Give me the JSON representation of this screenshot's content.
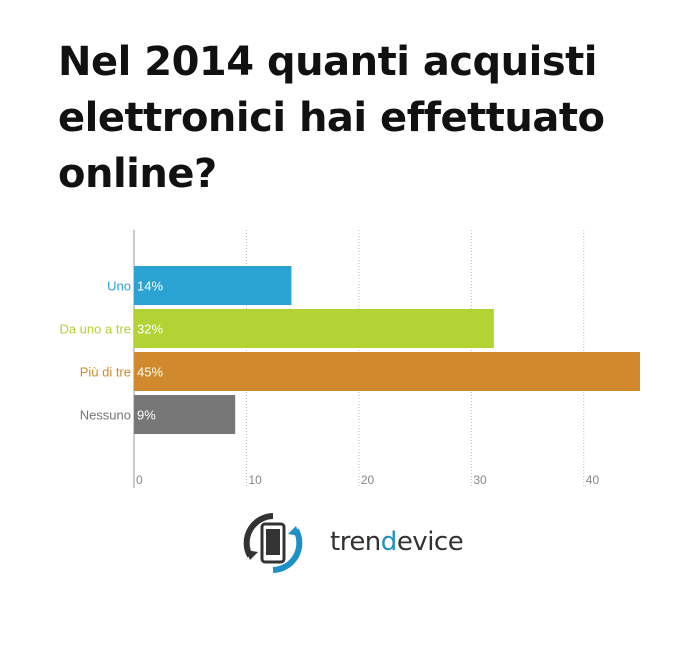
{
  "title": "Nel 2014 quanti acquisti elettronici hai effettuato online?",
  "chart_data": {
    "type": "bar",
    "orientation": "horizontal",
    "categories": [
      "Uno",
      "Da uno a tre",
      "Più di tre",
      "Nessuno"
    ],
    "values": [
      14,
      32,
      45,
      9
    ],
    "value_labels": [
      "14%",
      "32%",
      "45%",
      "9%"
    ],
    "colors": [
      "#2aa3d3",
      "#b3d233",
      "#d08a2d",
      "#777777"
    ],
    "xticks": [
      0,
      10,
      20,
      30,
      40
    ],
    "xlim": [
      0,
      45
    ],
    "grid": "vertical dashed",
    "title": "Nel 2014 quanti acquisti elettronici hai effettuato online?",
    "xlabel": "",
    "ylabel": ""
  },
  "logo": {
    "text_part1": "tren",
    "text_part2": "d",
    "text_part3": "evice",
    "icon": "phone-refresh-icon",
    "accent_color": "#1e90c8"
  }
}
